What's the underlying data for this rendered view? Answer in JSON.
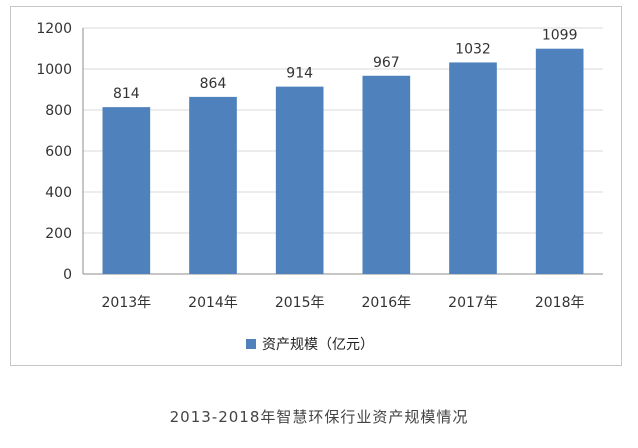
{
  "chart_data": {
    "type": "bar",
    "categories": [
      "2013年",
      "2014年",
      "2015年",
      "2016年",
      "2017年",
      "2018年"
    ],
    "series": [
      {
        "name": "资产规模（亿元）",
        "values": [
          814,
          864,
          914,
          967,
          1032,
          1099
        ]
      }
    ],
    "value_labels": [
      "814",
      "864",
      "914",
      "967",
      "1032",
      "1099"
    ],
    "title": "",
    "xlabel": "",
    "ylabel": "",
    "ylim": [
      0,
      1200
    ],
    "yticks": [
      0,
      200,
      400,
      600,
      800,
      1000,
      1200
    ],
    "grid": true,
    "legend_position": "bottom",
    "bar_color": "#4f81bd"
  },
  "caption": "2013-2018年智慧环保行业资产规模情况"
}
